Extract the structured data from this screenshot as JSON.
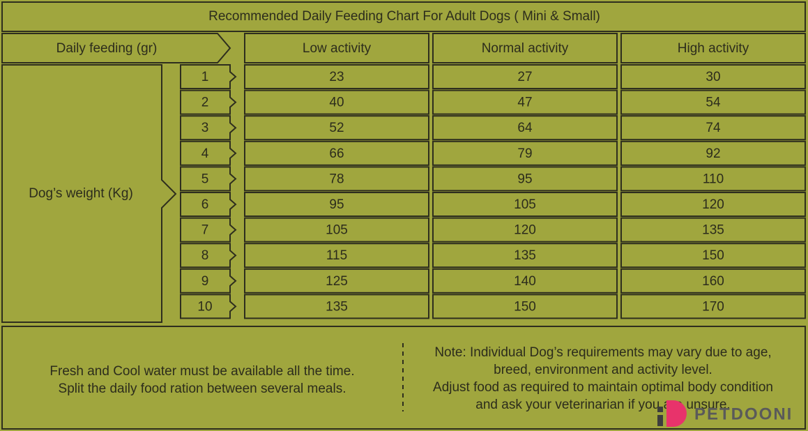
{
  "title": "Recommended Daily Feeding Chart For Adult Dogs ( Mini & Small)",
  "header": {
    "row_label": "Daily feeding (gr)",
    "columns": [
      "Low activity",
      "Normal activity",
      "High activity"
    ]
  },
  "weight_label": "Dog’s weight (Kg)",
  "rows": [
    {
      "weight": 1,
      "values": [
        23,
        27,
        30
      ]
    },
    {
      "weight": 2,
      "values": [
        40,
        47,
        54
      ]
    },
    {
      "weight": 3,
      "values": [
        52,
        64,
        74
      ]
    },
    {
      "weight": 4,
      "values": [
        66,
        79,
        92
      ]
    },
    {
      "weight": 5,
      "values": [
        78,
        95,
        110
      ]
    },
    {
      "weight": 6,
      "values": [
        95,
        105,
        120
      ]
    },
    {
      "weight": 7,
      "values": [
        105,
        120,
        135
      ]
    },
    {
      "weight": 8,
      "values": [
        115,
        135,
        150
      ]
    },
    {
      "weight": 9,
      "values": [
        125,
        140,
        160
      ]
    },
    {
      "weight": 10,
      "values": [
        135,
        150,
        170
      ]
    }
  ],
  "footer": {
    "left": [
      "Fresh and Cool water must be available all the time.",
      "Split the daily food ration between several meals."
    ],
    "note": [
      "Note:  Individual Dog’s requirements may vary due to age,",
      "breed, environment and activity level.",
      "Adjust food as required to maintain optimal body condition",
      "and ask your veterinarian if you are unsure."
    ]
  },
  "logo": "PETDOONI"
}
